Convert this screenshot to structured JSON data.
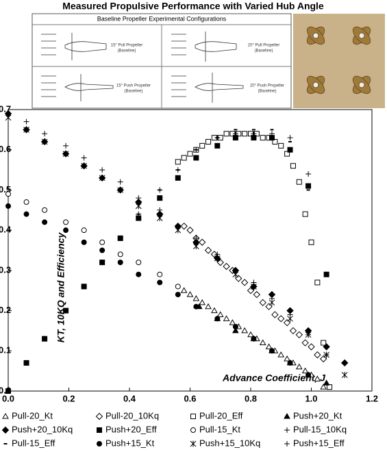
{
  "chart_data": {
    "type": "scatter",
    "title": "Measured Propulsive Performance with Varied Hub Angle",
    "xlabel": "Advance Coefficient, J",
    "ylabel": "KT, 10KQ and Efficiency",
    "xlim": [
      0,
      1.2
    ],
    "ylim": [
      0,
      0.7
    ],
    "xticks": [
      {
        "value": 0,
        "label": "0.0"
      },
      0.2,
      0.4,
      0.6,
      0.8,
      {
        "value": 1,
        "label": "1.0"
      },
      1.2
    ],
    "yticks": [
      {
        "value": 0,
        "label": "0.0"
      },
      0.1,
      0.2,
      0.3,
      0.4,
      0.5,
      0.6,
      0.7
    ],
    "series": [
      {
        "name": "Pull-20_Kt",
        "marker": "triangle",
        "filled": false,
        "color": "#000000",
        "x": [
          0.58,
          0.6,
          0.62,
          0.64,
          0.66,
          0.68,
          0.7,
          0.72,
          0.74,
          0.76,
          0.78,
          0.8,
          0.82,
          0.84,
          0.86,
          0.88,
          0.9,
          0.92,
          0.94,
          0.96,
          0.98,
          1.0,
          1.02,
          1.04
        ],
        "values": [
          0.25,
          0.24,
          0.23,
          0.22,
          0.21,
          0.2,
          0.19,
          0.18,
          0.17,
          0.16,
          0.15,
          0.14,
          0.13,
          0.12,
          0.11,
          0.1,
          0.09,
          0.08,
          0.07,
          0.06,
          0.05,
          0.04,
          0.03,
          0.01
        ]
      },
      {
        "name": "Pull-20_10Kq",
        "marker": "diamond",
        "filled": false,
        "color": "#000000",
        "x": [
          0.58,
          0.6,
          0.62,
          0.64,
          0.66,
          0.68,
          0.7,
          0.72,
          0.74,
          0.76,
          0.78,
          0.8,
          0.82,
          0.84,
          0.86,
          0.88,
          0.9,
          0.92,
          0.94,
          0.96,
          0.98,
          1.0,
          1.02,
          1.04
        ],
        "values": [
          0.41,
          0.4,
          0.38,
          0.37,
          0.35,
          0.34,
          0.32,
          0.31,
          0.3,
          0.28,
          0.27,
          0.25,
          0.24,
          0.22,
          0.21,
          0.19,
          0.18,
          0.17,
          0.15,
          0.14,
          0.12,
          0.11,
          0.09,
          0.08
        ]
      },
      {
        "name": "Pull-20_Eff",
        "marker": "square",
        "filled": false,
        "color": "#000000",
        "x": [
          0.56,
          0.58,
          0.6,
          0.62,
          0.64,
          0.66,
          0.68,
          0.7,
          0.72,
          0.74,
          0.76,
          0.78,
          0.8,
          0.82,
          0.84,
          0.86,
          0.88,
          0.9,
          0.92,
          0.94,
          0.96,
          0.98,
          1.0,
          1.02,
          1.04,
          1.06
        ],
        "values": [
          0.57,
          0.58,
          0.59,
          0.6,
          0.61,
          0.62,
          0.63,
          0.63,
          0.64,
          0.64,
          0.64,
          0.64,
          0.64,
          0.64,
          0.63,
          0.63,
          0.62,
          0.61,
          0.59,
          0.56,
          0.52,
          0.44,
          0.37,
          0.27,
          0.12,
          0.01
        ]
      },
      {
        "name": "Push+20_Kt",
        "marker": "triangle",
        "filled": true,
        "color": "#000000",
        "x": [
          0.63,
          0.69,
          0.75,
          0.81,
          0.87,
          0.93,
          0.99,
          1.05
        ],
        "values": [
          0.21,
          0.18,
          0.15,
          0.13,
          0.1,
          0.07,
          0.04,
          0.02
        ]
      },
      {
        "name": "Push+20_10Kq",
        "marker": "diamond",
        "filled": true,
        "color": "#000000",
        "x": [
          0,
          0.06,
          0.12,
          0.19,
          0.25,
          0.31,
          0.37,
          0.43,
          0.5,
          0.56,
          0.62,
          0.69,
          0.75,
          0.81,
          0.87,
          0.93,
          0.99,
          1.05,
          1.11
        ],
        "values": [
          0.69,
          0.65,
          0.62,
          0.59,
          0.56,
          0.53,
          0.5,
          0.47,
          0.44,
          0.41,
          0.37,
          0.33,
          0.3,
          0.26,
          0.24,
          0.2,
          0.15,
          0.11,
          0.07
        ]
      },
      {
        "name": "Push+20_Eff",
        "marker": "square",
        "filled": true,
        "color": "#000000",
        "x": [
          0,
          0.06,
          0.12,
          0.19,
          0.25,
          0.31,
          0.37,
          0.43,
          0.5,
          0.56,
          0.62,
          0.69,
          0.75,
          0.81,
          0.87,
          0.93,
          0.99,
          1.05
        ],
        "values": [
          0,
          0.07,
          0.13,
          0.2,
          0.26,
          0.32,
          0.38,
          0.43,
          0.48,
          0.53,
          0.58,
          0.61,
          0.63,
          0.63,
          0.63,
          0.6,
          0.51,
          0.29
        ]
      },
      {
        "name": "Pull-15_Kt",
        "marker": "circle",
        "filled": false,
        "color": "#000000",
        "x": [
          0,
          0.06,
          0.12,
          0.19,
          0.25,
          0.31,
          0.37,
          0.43,
          0.5,
          0.56
        ],
        "values": [
          0.49,
          0.47,
          0.45,
          0.42,
          0.4,
          0.37,
          0.34,
          0.32,
          0.29,
          0.26
        ]
      },
      {
        "name": "Pull-15_10Kq",
        "marker": "plus",
        "filled": false,
        "color": "#000000",
        "x": [
          0,
          0.06,
          0.12,
          0.19,
          0.25,
          0.31,
          0.37,
          0.43,
          0.5,
          0.56,
          0.62,
          0.69,
          0.75,
          0.81,
          0.87,
          0.93,
          0.99,
          1.05
        ],
        "values": [
          0.69,
          0.67,
          0.64,
          0.61,
          0.58,
          0.55,
          0.52,
          0.48,
          0.45,
          0.41,
          0.38,
          0.34,
          0.3,
          0.27,
          0.23,
          0.19,
          0.14,
          0.09
        ]
      },
      {
        "name": "Pull-15_Eff",
        "marker": "dash",
        "filled": false,
        "color": "#000000",
        "x": [
          0,
          0.06,
          0.12,
          0.19,
          0.25,
          0.31,
          0.37,
          0.43,
          0.5,
          0.56,
          0.62,
          0.69,
          0.75,
          0.81,
          0.87,
          0.93,
          0.99
        ],
        "values": [
          0,
          0.07,
          0.13,
          0.2,
          0.26,
          0.32,
          0.38,
          0.44,
          0.5,
          0.55,
          0.6,
          0.63,
          0.65,
          0.65,
          0.65,
          0.62,
          0.5
        ]
      },
      {
        "name": "Push+15_Kt",
        "marker": "circle",
        "filled": true,
        "color": "#000000",
        "x": [
          0,
          0.06,
          0.12,
          0.19,
          0.25,
          0.31,
          0.37,
          0.43,
          0.5,
          0.56,
          0.62,
          0.69,
          0.75,
          0.81,
          0.87,
          0.93,
          0.99
        ],
        "values": [
          0.46,
          0.44,
          0.42,
          0.4,
          0.37,
          0.35,
          0.32,
          0.29,
          0.27,
          0.24,
          0.21,
          0.18,
          0.16,
          0.13,
          0.1,
          0.07,
          0.04
        ]
      },
      {
        "name": "Push+15_10Kq",
        "marker": "asterisk",
        "filled": false,
        "color": "#000000",
        "x": [
          0,
          0.06,
          0.12,
          0.19,
          0.25,
          0.31,
          0.37,
          0.43,
          0.5,
          0.56,
          0.62,
          0.69,
          0.75,
          0.81,
          0.87,
          0.93,
          0.99,
          1.05,
          1.11
        ],
        "values": [
          0.68,
          0.65,
          0.62,
          0.59,
          0.56,
          0.53,
          0.5,
          0.46,
          0.43,
          0.4,
          0.36,
          0.33,
          0.29,
          0.26,
          0.22,
          0.18,
          0.14,
          0.09,
          0.04
        ]
      },
      {
        "name": "Push+15_Eff",
        "marker": "plus",
        "filled": false,
        "color": "#000000",
        "x": [
          0,
          0.06,
          0.12,
          0.19,
          0.25,
          0.31,
          0.37,
          0.43,
          0.5,
          0.56,
          0.62,
          0.69,
          0.75,
          0.81,
          0.87,
          0.93,
          0.99
        ],
        "values": [
          0,
          0.07,
          0.13,
          0.2,
          0.26,
          0.32,
          0.38,
          0.44,
          0.5,
          0.55,
          0.6,
          0.63,
          0.64,
          0.64,
          0.64,
          0.63,
          0.54
        ]
      }
    ]
  },
  "inset": {
    "title": "Baseline Propeller Experimental Configurations",
    "configs": [
      {
        "name": "15° Pull Propeller",
        "note": "(Baseline)"
      },
      {
        "name": "20° Pull Propeller",
        "note": "(Baseline)"
      },
      {
        "name": "15° Push Propeller",
        "note": "(Baseline)"
      },
      {
        "name": "20° Push Propeller",
        "note": "(Baseline)"
      }
    ]
  }
}
